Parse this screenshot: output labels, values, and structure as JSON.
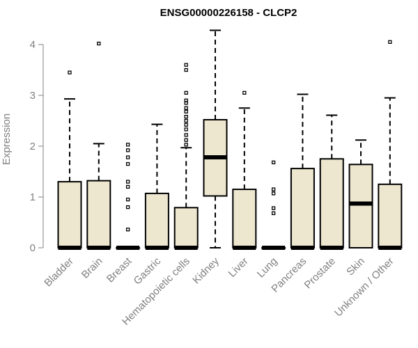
{
  "chart_data": {
    "type": "box",
    "title": "ENSG00000226158 - CLCP2",
    "xlabel": "",
    "ylabel": "Expression",
    "ylim": [
      0,
      4.3
    ],
    "yticks": [
      0,
      1,
      2,
      3,
      4
    ],
    "grid": false,
    "legend": "none",
    "colors": {
      "box_fill": "#ede7cf",
      "stroke": "#000000",
      "axis": "#808080"
    },
    "categories": [
      "Bladder",
      "Brain",
      "Breast",
      "Gastric",
      "Hematopoietic cells",
      "Kidney",
      "Liver",
      "Lung",
      "Pancreas",
      "Prostate",
      "Skin",
      "Unknown / Other"
    ],
    "boxes": [
      {
        "category": "Bladder",
        "min": 0,
        "q1": 0,
        "median": 0,
        "q3": 1.3,
        "max": 2.93,
        "outliers": [
          3.45
        ]
      },
      {
        "category": "Brain",
        "min": 0,
        "q1": 0,
        "median": 0,
        "q3": 1.32,
        "max": 2.05,
        "outliers": [
          4.02
        ]
      },
      {
        "category": "Breast",
        "min": 0,
        "q1": 0,
        "median": 0,
        "q3": 0,
        "max": 0,
        "outliers": [
          0.36,
          0.8,
          0.95,
          1.2,
          1.3,
          1.65,
          1.78,
          1.92,
          2.03
        ]
      },
      {
        "category": "Gastric",
        "min": 0,
        "q1": 0,
        "median": 0,
        "q3": 1.07,
        "max": 2.43,
        "outliers": []
      },
      {
        "category": "Hematopoietic cells",
        "min": 0,
        "q1": 0,
        "median": 0,
        "q3": 0.79,
        "max": 1.97,
        "outliers": [
          2.03,
          2.12,
          2.22,
          2.33,
          2.42,
          2.5,
          2.58,
          2.68,
          2.75,
          2.85,
          2.9,
          3.05,
          3.5,
          3.6
        ]
      },
      {
        "category": "Kidney",
        "min": 0,
        "q1": 1.02,
        "median": 1.78,
        "q3": 2.52,
        "max": 4.28,
        "outliers": []
      },
      {
        "category": "Liver",
        "min": 0,
        "q1": 0,
        "median": 0,
        "q3": 1.15,
        "max": 2.75,
        "outliers": [
          3.05
        ]
      },
      {
        "category": "Lung",
        "min": 0,
        "q1": 0,
        "median": 0,
        "q3": 0,
        "max": 0,
        "outliers": [
          0.68,
          0.78,
          1.07,
          1.15,
          1.68
        ]
      },
      {
        "category": "Pancreas",
        "min": 0,
        "q1": 0,
        "median": 0,
        "q3": 1.56,
        "max": 3.02,
        "outliers": []
      },
      {
        "category": "Prostate",
        "min": 0,
        "q1": 0,
        "median": 0,
        "q3": 1.75,
        "max": 2.61,
        "outliers": []
      },
      {
        "category": "Skin",
        "min": 0,
        "q1": 0,
        "median": 0.87,
        "q3": 1.64,
        "max": 2.12,
        "outliers": []
      },
      {
        "category": "Unknown / Other",
        "min": 0,
        "q1": 0,
        "median": 0,
        "q3": 1.25,
        "max": 2.95,
        "outliers": [
          4.05
        ]
      }
    ]
  }
}
